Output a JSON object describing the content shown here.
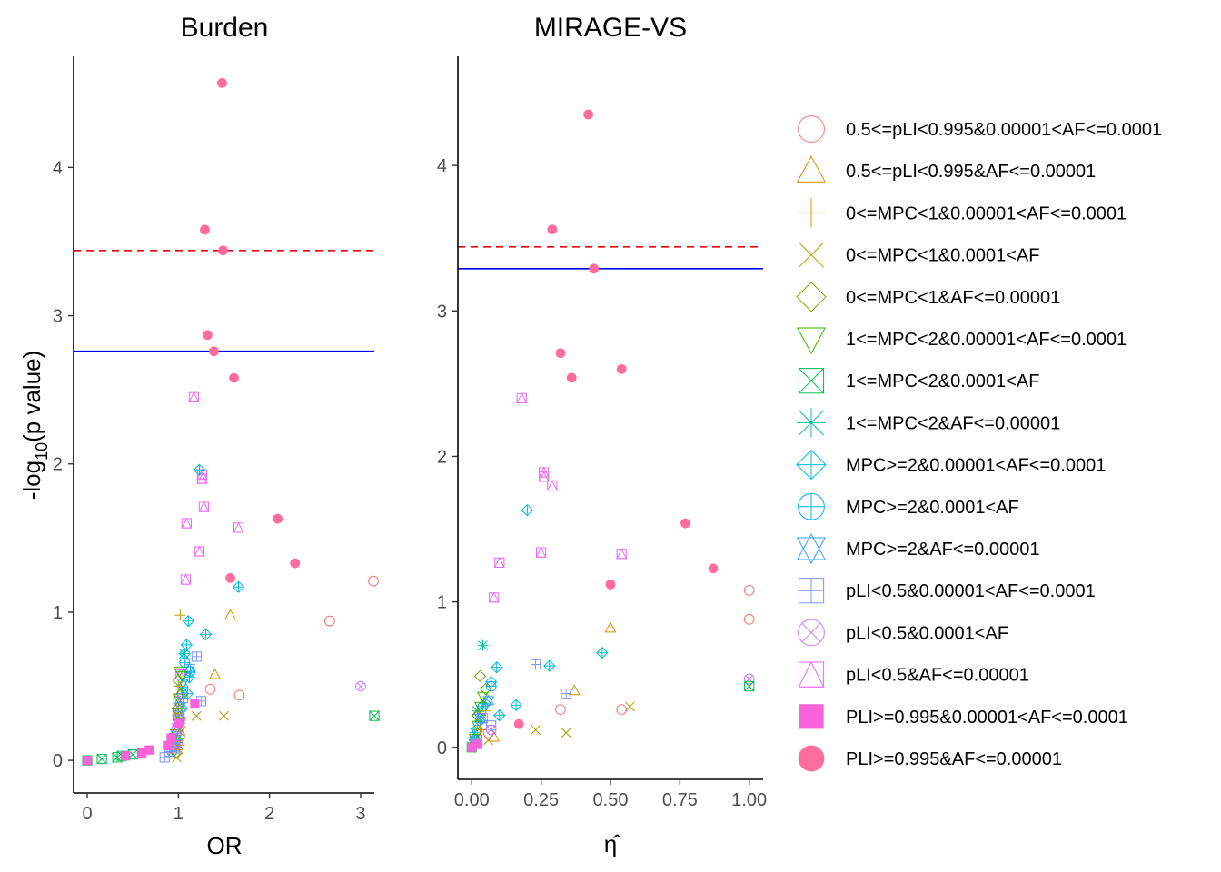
{
  "chart_data": [
    {
      "type": "scatter",
      "title": "Burden",
      "xlabel": "OR",
      "ylabel_main": "-log",
      "ylabel_sub": "10",
      "ylabel_tail": "(p value)",
      "xlim": [
        -0.15,
        3.15
      ],
      "ylim": [
        -0.22,
        4.75
      ],
      "xticks": [
        0,
        1,
        2,
        3
      ],
      "yticks": [
        0,
        1,
        2,
        3,
        4
      ],
      "hlines": [
        {
          "y": 3.44,
          "color": "#e8000b",
          "style": "dashed"
        },
        {
          "y": 2.76,
          "color": "#0000ee",
          "style": "solid"
        }
      ],
      "points": [
        {
          "x": 1.48,
          "y": 4.57,
          "g": 15
        },
        {
          "x": 1.29,
          "y": 3.58,
          "g": 15
        },
        {
          "x": 1.49,
          "y": 3.44,
          "g": 15
        },
        {
          "x": 1.32,
          "y": 2.87,
          "g": 15
        },
        {
          "x": 1.39,
          "y": 2.76,
          "g": 15
        },
        {
          "x": 1.61,
          "y": 2.58,
          "g": 15
        },
        {
          "x": 2.09,
          "y": 1.63,
          "g": 15
        },
        {
          "x": 2.28,
          "y": 1.33,
          "g": 15
        },
        {
          "x": 1.57,
          "y": 1.23,
          "g": 15
        },
        {
          "x": 1.17,
          "y": 2.45,
          "g": 13
        },
        {
          "x": 1.26,
          "y": 1.93,
          "g": 13
        },
        {
          "x": 1.26,
          "y": 1.9,
          "g": 13
        },
        {
          "x": 1.28,
          "y": 1.71,
          "g": 13
        },
        {
          "x": 1.09,
          "y": 1.6,
          "g": 13
        },
        {
          "x": 1.66,
          "y": 1.57,
          "g": 13
        },
        {
          "x": 1.23,
          "y": 1.41,
          "g": 13
        },
        {
          "x": 1.08,
          "y": 1.22,
          "g": 13
        },
        {
          "x": 1.02,
          "y": 0.58,
          "g": 13
        },
        {
          "x": 1.0,
          "y": 0.4,
          "g": 13
        },
        {
          "x": 0.98,
          "y": 0.2,
          "g": 13
        },
        {
          "x": 0.96,
          "y": 0.08,
          "g": 13
        },
        {
          "x": 1.23,
          "y": 1.96,
          "g": 8
        },
        {
          "x": 1.66,
          "y": 1.17,
          "g": 8
        },
        {
          "x": 1.11,
          "y": 0.94,
          "g": 8
        },
        {
          "x": 1.3,
          "y": 0.85,
          "g": 8
        },
        {
          "x": 1.09,
          "y": 0.78,
          "g": 8
        },
        {
          "x": 1.07,
          "y": 0.72,
          "g": 8
        },
        {
          "x": 1.12,
          "y": 0.56,
          "g": 8
        },
        {
          "x": 1.1,
          "y": 0.45,
          "g": 8
        },
        {
          "x": 1.04,
          "y": 0.35,
          "g": 8
        },
        {
          "x": 1.01,
          "y": 0.25,
          "g": 8
        },
        {
          "x": 0.98,
          "y": 0.14,
          "g": 8
        },
        {
          "x": 0.95,
          "y": 0.09,
          "g": 8
        },
        {
          "x": 1.13,
          "y": 0.6,
          "g": 9
        },
        {
          "x": 1.07,
          "y": 0.66,
          "g": 9
        },
        {
          "x": 1.04,
          "y": 0.45,
          "g": 9
        },
        {
          "x": 1.0,
          "y": 0.28,
          "g": 9
        },
        {
          "x": 0.97,
          "y": 0.15,
          "g": 9
        },
        {
          "x": 0.93,
          "y": 0.06,
          "g": 9
        },
        {
          "x": 1.12,
          "y": 0.62,
          "g": 10
        },
        {
          "x": 1.05,
          "y": 0.52,
          "g": 10
        },
        {
          "x": 1.02,
          "y": 0.36,
          "g": 10
        },
        {
          "x": 0.99,
          "y": 0.22,
          "g": 10
        },
        {
          "x": 0.96,
          "y": 0.1,
          "g": 10
        },
        {
          "x": 1.06,
          "y": 0.72,
          "g": 7
        },
        {
          "x": 1.03,
          "y": 0.48,
          "g": 7
        },
        {
          "x": 1.0,
          "y": 0.3,
          "g": 7
        },
        {
          "x": 0.98,
          "y": 0.12,
          "g": 7
        },
        {
          "x": 1.01,
          "y": 0.6,
          "g": 5
        },
        {
          "x": 1.04,
          "y": 0.57,
          "g": 5
        },
        {
          "x": 1.0,
          "y": 0.42,
          "g": 5
        },
        {
          "x": 0.99,
          "y": 0.32,
          "g": 5
        },
        {
          "x": 1.02,
          "y": 0.26,
          "g": 5
        },
        {
          "x": 0.97,
          "y": 0.18,
          "g": 5
        },
        {
          "x": 1.0,
          "y": 0.54,
          "g": 4
        },
        {
          "x": 1.02,
          "y": 0.44,
          "g": 4
        },
        {
          "x": 0.99,
          "y": 0.35,
          "g": 4
        },
        {
          "x": 1.01,
          "y": 0.16,
          "g": 4
        },
        {
          "x": 0.98,
          "y": 0.05,
          "g": 4
        },
        {
          "x": 1.02,
          "y": 0.98,
          "g": 2
        },
        {
          "x": 1.0,
          "y": 0.5,
          "g": 2
        },
        {
          "x": 0.99,
          "y": 0.3,
          "g": 2
        },
        {
          "x": 1.01,
          "y": 0.1,
          "g": 2
        },
        {
          "x": 1.5,
          "y": 0.3,
          "g": 3
        },
        {
          "x": 1.2,
          "y": 0.3,
          "g": 3
        },
        {
          "x": 1.03,
          "y": 0.2,
          "g": 3
        },
        {
          "x": 0.98,
          "y": 0.02,
          "g": 3
        },
        {
          "x": 1.57,
          "y": 0.98,
          "g": 1
        },
        {
          "x": 1.4,
          "y": 0.58,
          "g": 1
        },
        {
          "x": 1.01,
          "y": 0.34,
          "g": 1
        },
        {
          "x": 0.99,
          "y": 0.1,
          "g": 1
        },
        {
          "x": 2.66,
          "y": 0.94,
          "g": 0
        },
        {
          "x": 3.14,
          "y": 1.21,
          "g": 0
        },
        {
          "x": 1.67,
          "y": 0.44,
          "g": 0
        },
        {
          "x": 1.35,
          "y": 0.48,
          "g": 0
        },
        {
          "x": 1.02,
          "y": 0.28,
          "g": 0
        },
        {
          "x": 0.99,
          "y": 0.12,
          "g": 0
        },
        {
          "x": 1.25,
          "y": 0.4,
          "g": 11
        },
        {
          "x": 1.2,
          "y": 0.7,
          "g": 11
        },
        {
          "x": 1.05,
          "y": 0.42,
          "g": 11
        },
        {
          "x": 0.99,
          "y": 0.3,
          "g": 11
        },
        {
          "x": 0.95,
          "y": 0.15,
          "g": 11
        },
        {
          "x": 0.9,
          "y": 0.06,
          "g": 11
        },
        {
          "x": 0.85,
          "y": 0.02,
          "g": 11
        },
        {
          "x": 3.0,
          "y": 0.5,
          "g": 12
        },
        {
          "x": 1.01,
          "y": 0.22,
          "g": 12
        },
        {
          "x": 0.97,
          "y": 0.1,
          "g": 12
        },
        {
          "x": 3.15,
          "y": 0.3,
          "g": 6
        },
        {
          "x": 0.16,
          "y": 0.01,
          "g": 6
        },
        {
          "x": 0.38,
          "y": 0.03,
          "g": 6
        },
        {
          "x": 0.5,
          "y": 0.04,
          "g": 6
        },
        {
          "x": 0.0,
          "y": 0.0,
          "g": 6
        },
        {
          "x": 0.33,
          "y": 0.02,
          "g": 6
        },
        {
          "x": 0.0,
          "y": 0.0,
          "g": 14
        },
        {
          "x": 0.6,
          "y": 0.05,
          "g": 14
        },
        {
          "x": 0.68,
          "y": 0.07,
          "g": 14
        },
        {
          "x": 0.42,
          "y": 0.03,
          "g": 14
        },
        {
          "x": 0.88,
          "y": 0.1,
          "g": 14
        },
        {
          "x": 0.92,
          "y": 0.15,
          "g": 14
        },
        {
          "x": 1.18,
          "y": 0.38,
          "g": 14
        },
        {
          "x": 1.0,
          "y": 0.25,
          "g": 14
        }
      ]
    },
    {
      "type": "scatter",
      "title": "MIRAGE-VS",
      "xlabel": "η̂",
      "xlim": [
        -0.05,
        1.05
      ],
      "ylim": [
        -0.22,
        4.75
      ],
      "xticks": [
        "0.00",
        "0.25",
        "0.50",
        "0.75",
        "1.00"
      ],
      "yticks": [
        0,
        1,
        2,
        3,
        4
      ],
      "hlines": [
        {
          "y": 3.44,
          "color": "#e8000b",
          "style": "dashed"
        },
        {
          "y": 3.29,
          "color": "#0000ee",
          "style": "solid"
        }
      ],
      "points": [
        {
          "x": 0.42,
          "y": 4.35,
          "g": 15
        },
        {
          "x": 0.29,
          "y": 3.56,
          "g": 15
        },
        {
          "x": 0.44,
          "y": 3.29,
          "g": 15
        },
        {
          "x": 0.32,
          "y": 2.71,
          "g": 15
        },
        {
          "x": 0.36,
          "y": 2.54,
          "g": 15
        },
        {
          "x": 0.54,
          "y": 2.6,
          "g": 15
        },
        {
          "x": 0.77,
          "y": 1.54,
          "g": 15
        },
        {
          "x": 0.87,
          "y": 1.23,
          "g": 15
        },
        {
          "x": 0.5,
          "y": 1.12,
          "g": 15
        },
        {
          "x": 0.17,
          "y": 0.16,
          "g": 15
        },
        {
          "x": 0.18,
          "y": 2.4,
          "g": 13
        },
        {
          "x": 0.26,
          "y": 1.89,
          "g": 13
        },
        {
          "x": 0.26,
          "y": 1.86,
          "g": 13
        },
        {
          "x": 0.29,
          "y": 1.8,
          "g": 13
        },
        {
          "x": 0.1,
          "y": 1.27,
          "g": 13
        },
        {
          "x": 0.25,
          "y": 1.34,
          "g": 13
        },
        {
          "x": 0.54,
          "y": 1.33,
          "g": 13
        },
        {
          "x": 0.08,
          "y": 1.03,
          "g": 13
        },
        {
          "x": 0.04,
          "y": 0.2,
          "g": 13
        },
        {
          "x": 0.02,
          "y": 0.05,
          "g": 13
        },
        {
          "x": 0.2,
          "y": 1.63,
          "g": 8
        },
        {
          "x": 0.47,
          "y": 0.65,
          "g": 8
        },
        {
          "x": 0.28,
          "y": 0.56,
          "g": 8
        },
        {
          "x": 0.09,
          "y": 0.55,
          "g": 8
        },
        {
          "x": 0.07,
          "y": 0.45,
          "g": 8
        },
        {
          "x": 0.16,
          "y": 0.29,
          "g": 8
        },
        {
          "x": 0.1,
          "y": 0.22,
          "g": 8
        },
        {
          "x": 0.05,
          "y": 0.3,
          "g": 8
        },
        {
          "x": 0.03,
          "y": 0.18,
          "g": 8
        },
        {
          "x": 0.01,
          "y": 0.05,
          "g": 8
        },
        {
          "x": 0.04,
          "y": 0.7,
          "g": 7
        },
        {
          "x": 0.02,
          "y": 0.25,
          "g": 7
        },
        {
          "x": 0.01,
          "y": 0.1,
          "g": 7
        },
        {
          "x": 0.07,
          "y": 0.42,
          "g": 9
        },
        {
          "x": 0.04,
          "y": 0.28,
          "g": 9
        },
        {
          "x": 0.02,
          "y": 0.12,
          "g": 9
        },
        {
          "x": 0.06,
          "y": 0.32,
          "g": 10
        },
        {
          "x": 0.03,
          "y": 0.2,
          "g": 10
        },
        {
          "x": 0.01,
          "y": 0.04,
          "g": 10
        },
        {
          "x": 0.04,
          "y": 0.35,
          "g": 5
        },
        {
          "x": 0.03,
          "y": 0.28,
          "g": 5
        },
        {
          "x": 0.02,
          "y": 0.15,
          "g": 5
        },
        {
          "x": 0.01,
          "y": 0.06,
          "g": 5
        },
        {
          "x": 0.03,
          "y": 0.49,
          "g": 4
        },
        {
          "x": 0.05,
          "y": 0.4,
          "g": 4
        },
        {
          "x": 0.02,
          "y": 0.22,
          "g": 4
        },
        {
          "x": 0.01,
          "y": 0.02,
          "g": 4
        },
        {
          "x": 0.05,
          "y": 0.25,
          "g": 2
        },
        {
          "x": 0.03,
          "y": 0.12,
          "g": 2
        },
        {
          "x": 0.01,
          "y": 0.0,
          "g": 2
        },
        {
          "x": 0.57,
          "y": 0.28,
          "g": 3
        },
        {
          "x": 0.34,
          "y": 0.1,
          "g": 3
        },
        {
          "x": 0.23,
          "y": 0.12,
          "g": 3
        },
        {
          "x": 0.06,
          "y": 0.05,
          "g": 3
        },
        {
          "x": 0.5,
          "y": 0.82,
          "g": 1
        },
        {
          "x": 0.37,
          "y": 0.39,
          "g": 1
        },
        {
          "x": 0.08,
          "y": 0.07,
          "g": 1
        },
        {
          "x": 1.0,
          "y": 1.08,
          "g": 0
        },
        {
          "x": 1.0,
          "y": 0.88,
          "g": 0
        },
        {
          "x": 0.54,
          "y": 0.26,
          "g": 0
        },
        {
          "x": 0.32,
          "y": 0.26,
          "g": 0
        },
        {
          "x": 0.06,
          "y": 0.1,
          "g": 0
        },
        {
          "x": 0.23,
          "y": 0.57,
          "g": 11
        },
        {
          "x": 0.34,
          "y": 0.37,
          "g": 11
        },
        {
          "x": 0.07,
          "y": 0.15,
          "g": 11
        },
        {
          "x": 0.02,
          "y": 0.03,
          "g": 11
        },
        {
          "x": 1.0,
          "y": 0.47,
          "g": 12
        },
        {
          "x": 0.07,
          "y": 0.12,
          "g": 12
        },
        {
          "x": 1.0,
          "y": 0.42,
          "g": 6
        },
        {
          "x": 0.0,
          "y": 0.0,
          "g": 6
        },
        {
          "x": 0.0,
          "y": 0.0,
          "g": 14
        },
        {
          "x": 0.02,
          "y": 0.02,
          "g": 14
        }
      ]
    }
  ],
  "legend": {
    "items": [
      {
        "label": "0.5<=pLI<0.995&0.00001<AF<=0.0001",
        "shape": "circle-open",
        "color": "#f8766d"
      },
      {
        "label": "0.5<=pLI<0.995&AF<=0.00001",
        "shape": "triangle-open",
        "color": "#d89000"
      },
      {
        "label": "0<=MPC<1&0.00001<AF<=0.0001",
        "shape": "plus",
        "color": "#c49a00"
      },
      {
        "label": "0<=MPC<1&0.0001<AF",
        "shape": "cross",
        "color": "#a3a500"
      },
      {
        "label": "0<=MPC<1&AF<=0.00001",
        "shape": "diamond-open",
        "color": "#72a800"
      },
      {
        "label": "1<=MPC<2&0.00001<AF<=0.0001",
        "shape": "triangle-down-open",
        "color": "#39b600"
      },
      {
        "label": "1<=MPC<2&0.0001<AF",
        "shape": "square-cross",
        "color": "#00bb4e"
      },
      {
        "label": "1<=MPC<2&AF<=0.00001",
        "shape": "asterisk",
        "color": "#00bfa0"
      },
      {
        "label": "MPC>=2&0.00001<AF<=0.0001",
        "shape": "diamond-plus",
        "color": "#00bcd8"
      },
      {
        "label": "MPC>=2&0.0001<AF",
        "shape": "circle-plus",
        "color": "#00b0f6"
      },
      {
        "label": "MPC>=2&AF<=0.00001",
        "shape": "star-david",
        "color": "#35a2ff"
      },
      {
        "label": "pLI<0.5&0.00001<AF<=0.0001",
        "shape": "square-plus",
        "color": "#7c95ff"
      },
      {
        "label": "pLI<0.5&0.0001<AF",
        "shape": "circle-cross",
        "color": "#c77cff"
      },
      {
        "label": "pLI<0.5&AF<=0.00001",
        "shape": "square-triangle",
        "color": "#e76bf3"
      },
      {
        "label": "PLI>=0.995&0.00001<AF<=0.0001",
        "shape": "square-filled",
        "color": "#fa62db"
      },
      {
        "label": "PLI>=0.995&AF<=0.00001",
        "shape": "circle-filled",
        "color": "#ff6c9e"
      }
    ]
  }
}
